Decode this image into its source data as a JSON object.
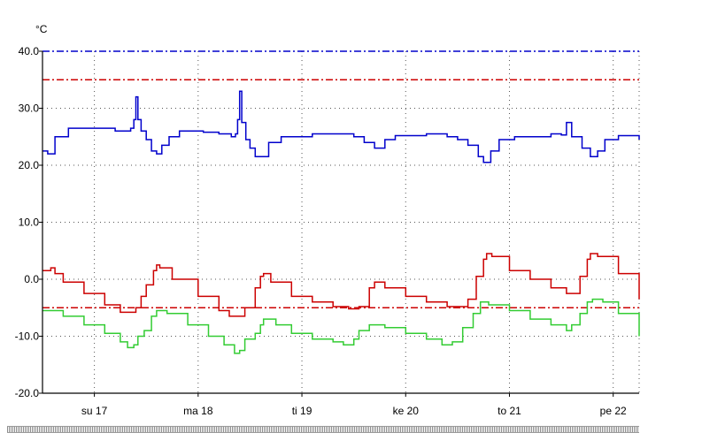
{
  "chart_data": {
    "type": "line",
    "unit": "°C",
    "ylim": [
      -20,
      40
    ],
    "yticks": [
      "40.0",
      "30.0",
      "20.0",
      "10.0",
      "0.0",
      "-10.0",
      "-20.0"
    ],
    "xlim": [
      0,
      5.75
    ],
    "xticks": [
      {
        "label": "su 17",
        "x": 0.5
      },
      {
        "label": "ma 18",
        "x": 1.5
      },
      {
        "label": "ti 19",
        "x": 2.5
      },
      {
        "label": "ke 20",
        "x": 3.5
      },
      {
        "label": "to 21",
        "x": 4.5
      },
      {
        "label": "pe 22",
        "x": 5.5
      }
    ],
    "grid": true,
    "reference_lines": [
      {
        "y": 40,
        "color": "#0000cc",
        "style": "dash-dot"
      },
      {
        "y": 35,
        "color": "#cc0000",
        "style": "dash-dot"
      },
      {
        "y": -5,
        "color": "#cc0000",
        "style": "dash-dot"
      }
    ],
    "series": [
      {
        "color": "#0000cc",
        "points": [
          [
            0.0,
            22.5
          ],
          [
            0.05,
            22.0
          ],
          [
            0.12,
            25.0
          ],
          [
            0.25,
            26.5
          ],
          [
            0.45,
            26.5
          ],
          [
            0.7,
            26.0
          ],
          [
            0.8,
            26.0
          ],
          [
            0.85,
            26.5
          ],
          [
            0.88,
            28.0
          ],
          [
            0.9,
            32.0
          ],
          [
            0.92,
            28.0
          ],
          [
            0.95,
            26.0
          ],
          [
            1.0,
            24.5
          ],
          [
            1.05,
            22.5
          ],
          [
            1.1,
            22.0
          ],
          [
            1.15,
            23.5
          ],
          [
            1.22,
            25.0
          ],
          [
            1.32,
            26.0
          ],
          [
            1.55,
            25.8
          ],
          [
            1.7,
            25.5
          ],
          [
            1.82,
            25.0
          ],
          [
            1.86,
            25.5
          ],
          [
            1.88,
            28.0
          ],
          [
            1.9,
            33.0
          ],
          [
            1.92,
            27.5
          ],
          [
            1.96,
            24.5
          ],
          [
            2.0,
            23.0
          ],
          [
            2.05,
            21.5
          ],
          [
            2.1,
            21.5
          ],
          [
            2.18,
            24.0
          ],
          [
            2.3,
            25.0
          ],
          [
            2.6,
            25.5
          ],
          [
            2.9,
            25.5
          ],
          [
            3.0,
            25.0
          ],
          [
            3.1,
            24.0
          ],
          [
            3.2,
            23.0
          ],
          [
            3.3,
            24.5
          ],
          [
            3.4,
            25.2
          ],
          [
            3.7,
            25.5
          ],
          [
            3.9,
            25.0
          ],
          [
            4.0,
            24.5
          ],
          [
            4.1,
            23.5
          ],
          [
            4.2,
            21.5
          ],
          [
            4.25,
            20.5
          ],
          [
            4.32,
            22.5
          ],
          [
            4.4,
            24.5
          ],
          [
            4.55,
            25.0
          ],
          [
            4.7,
            25.0
          ],
          [
            4.9,
            25.5
          ],
          [
            5.0,
            25.3
          ],
          [
            5.05,
            27.5
          ],
          [
            5.1,
            25.0
          ],
          [
            5.2,
            23.0
          ],
          [
            5.28,
            21.5
          ],
          [
            5.35,
            22.5
          ],
          [
            5.42,
            24.5
          ],
          [
            5.55,
            25.2
          ],
          [
            5.75,
            24.5
          ]
        ]
      },
      {
        "color": "#cc0000",
        "points": [
          [
            0.0,
            1.5
          ],
          [
            0.08,
            2.0
          ],
          [
            0.12,
            1.0
          ],
          [
            0.2,
            -0.5
          ],
          [
            0.4,
            -2.5
          ],
          [
            0.6,
            -4.5
          ],
          [
            0.75,
            -5.8
          ],
          [
            0.85,
            -5.8
          ],
          [
            0.9,
            -5.0
          ],
          [
            0.95,
            -3.0
          ],
          [
            1.0,
            -1.0
          ],
          [
            1.07,
            1.5
          ],
          [
            1.1,
            2.5
          ],
          [
            1.13,
            2.0
          ],
          [
            1.25,
            0.0
          ],
          [
            1.5,
            -3.0
          ],
          [
            1.7,
            -5.5
          ],
          [
            1.8,
            -6.5
          ],
          [
            1.85,
            -6.5
          ],
          [
            1.95,
            -5.0
          ],
          [
            2.05,
            -1.5
          ],
          [
            2.1,
            0.5
          ],
          [
            2.13,
            1.0
          ],
          [
            2.2,
            -0.5
          ],
          [
            2.4,
            -3.0
          ],
          [
            2.6,
            -4.0
          ],
          [
            2.8,
            -4.8
          ],
          [
            2.95,
            -5.2
          ],
          [
            3.05,
            -4.8
          ],
          [
            3.15,
            -1.5
          ],
          [
            3.2,
            -0.5
          ],
          [
            3.3,
            -1.5
          ],
          [
            3.5,
            -3.0
          ],
          [
            3.7,
            -4.0
          ],
          [
            3.9,
            -4.8
          ],
          [
            4.05,
            -4.8
          ],
          [
            4.1,
            -3.5
          ],
          [
            4.18,
            0.5
          ],
          [
            4.25,
            3.5
          ],
          [
            4.28,
            4.5
          ],
          [
            4.33,
            4.0
          ],
          [
            4.5,
            1.5
          ],
          [
            4.7,
            0.0
          ],
          [
            4.9,
            -1.5
          ],
          [
            5.05,
            -2.5
          ],
          [
            5.1,
            -2.5
          ],
          [
            5.18,
            0.5
          ],
          [
            5.25,
            3.5
          ],
          [
            5.28,
            4.5
          ],
          [
            5.35,
            4.0
          ],
          [
            5.55,
            1.0
          ],
          [
            5.75,
            -3.5
          ]
        ]
      },
      {
        "color": "#33cc33",
        "points": [
          [
            0.0,
            -5.5
          ],
          [
            0.08,
            -5.5
          ],
          [
            0.2,
            -6.5
          ],
          [
            0.4,
            -8.0
          ],
          [
            0.6,
            -9.5
          ],
          [
            0.75,
            -11.0
          ],
          [
            0.82,
            -12.0
          ],
          [
            0.88,
            -11.5
          ],
          [
            0.92,
            -10.0
          ],
          [
            0.98,
            -9.0
          ],
          [
            1.05,
            -6.5
          ],
          [
            1.1,
            -5.5
          ],
          [
            1.2,
            -6.0
          ],
          [
            1.4,
            -8.0
          ],
          [
            1.6,
            -10.0
          ],
          [
            1.75,
            -11.5
          ],
          [
            1.85,
            -13.0
          ],
          [
            1.9,
            -12.5
          ],
          [
            1.95,
            -10.5
          ],
          [
            2.05,
            -9.5
          ],
          [
            2.1,
            -8.0
          ],
          [
            2.13,
            -7.0
          ],
          [
            2.25,
            -8.0
          ],
          [
            2.4,
            -9.5
          ],
          [
            2.6,
            -10.5
          ],
          [
            2.8,
            -11.0
          ],
          [
            2.9,
            -11.5
          ],
          [
            3.0,
            -10.5
          ],
          [
            3.05,
            -9.0
          ],
          [
            3.15,
            -8.0
          ],
          [
            3.3,
            -8.5
          ],
          [
            3.5,
            -9.5
          ],
          [
            3.7,
            -10.5
          ],
          [
            3.85,
            -11.5
          ],
          [
            3.95,
            -11.0
          ],
          [
            4.05,
            -8.5
          ],
          [
            4.15,
            -6.0
          ],
          [
            4.22,
            -4.0
          ],
          [
            4.3,
            -4.5
          ],
          [
            4.5,
            -5.5
          ],
          [
            4.7,
            -7.0
          ],
          [
            4.9,
            -8.0
          ],
          [
            5.05,
            -9.0
          ],
          [
            5.1,
            -8.0
          ],
          [
            5.18,
            -6.0
          ],
          [
            5.25,
            -4.0
          ],
          [
            5.3,
            -3.5
          ],
          [
            5.4,
            -4.0
          ],
          [
            5.55,
            -6.0
          ],
          [
            5.75,
            -10.0
          ]
        ]
      }
    ]
  }
}
